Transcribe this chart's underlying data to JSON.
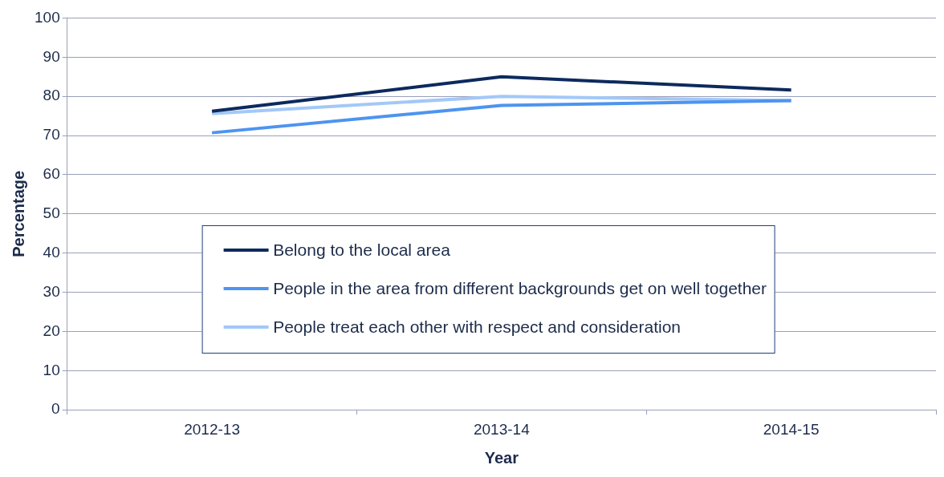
{
  "chart_data": {
    "type": "line",
    "xlabel": "Year",
    "ylabel": "Percentage",
    "categories": [
      "2012-13",
      "2013-14",
      "2014-15"
    ],
    "series": [
      {
        "name": "Belong to the local area",
        "color": "#0d2a5e",
        "values": [
          76.2,
          85.0,
          81.6
        ]
      },
      {
        "name": "People in the area from different backgrounds get on well together",
        "color": "#4d94f0",
        "values": [
          70.7,
          77.7,
          78.9
        ]
      },
      {
        "name": "People treat each other with respect and consideration",
        "color": "#a3c8f8",
        "values": [
          75.6,
          80.0,
          78.9
        ]
      }
    ],
    "ylim": [
      0,
      100
    ],
    "yticks": [
      0,
      10,
      20,
      30,
      40,
      50,
      60,
      70,
      80,
      90,
      100
    ],
    "grid": "y",
    "legend": "bottom",
    "marker": "none",
    "line_style": "solid"
  }
}
